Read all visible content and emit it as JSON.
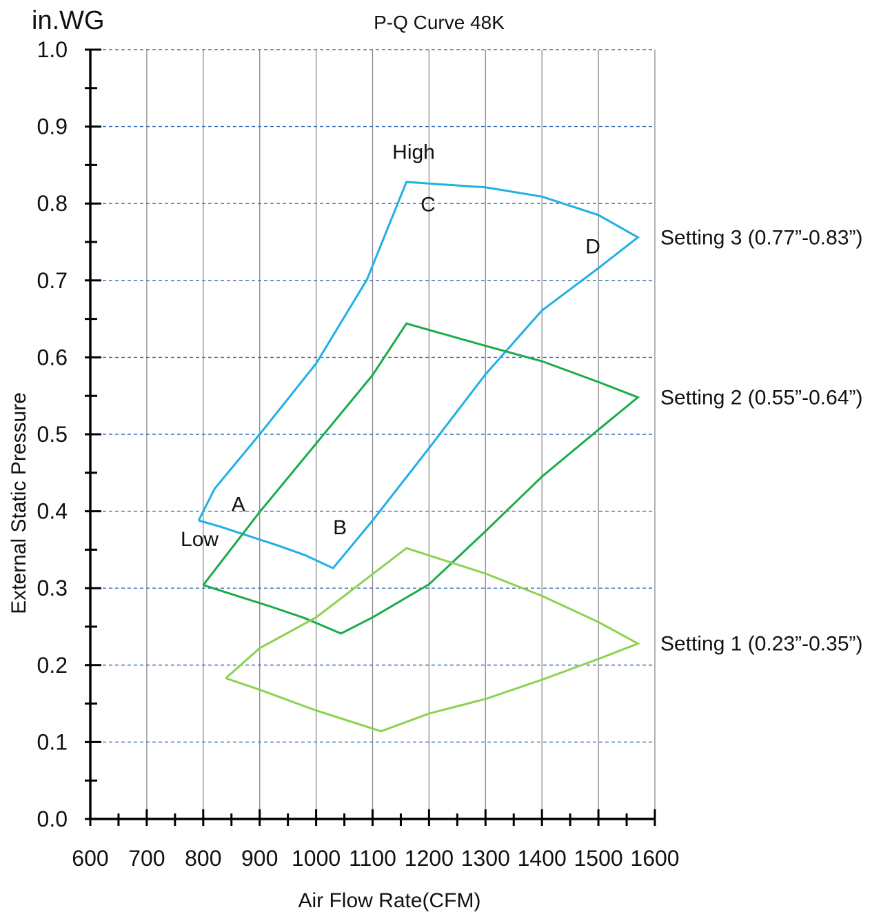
{
  "chart_data": {
    "type": "line",
    "title": "P-Q Curve 48K",
    "unit_label": "in.WG",
    "xlabel": "Air Flow Rate(CFM)",
    "ylabel": "External Static Pressure",
    "xlim": [
      600,
      1600
    ],
    "ylim": [
      0.0,
      1.0
    ],
    "x_ticks": [
      600,
      700,
      800,
      900,
      1000,
      1100,
      1200,
      1300,
      1400,
      1500,
      1600
    ],
    "y_ticks": [
      0.0,
      0.1,
      0.2,
      0.3,
      0.4,
      0.5,
      0.6,
      0.7,
      0.8,
      0.9,
      1.0
    ],
    "x_tick_labels": [
      "600",
      "700",
      "800",
      "900",
      "1000",
      "1100",
      "1200",
      "1300",
      "1400",
      "1500",
      "1600"
    ],
    "y_tick_labels": [
      "0.0",
      "0.1",
      "0.2",
      "0.3",
      "0.4",
      "0.5",
      "0.6",
      "0.7",
      "0.8",
      "0.9",
      "1.0"
    ],
    "grid": {
      "vertical": true,
      "horizontal": true,
      "horizontal_style": "dashed"
    },
    "series": [
      {
        "name": "Setting 3 (0.77”-0.83”)",
        "color": "#1eb0e6",
        "points": [
          [
            792,
            0.388
          ],
          [
            830,
            0.38
          ],
          [
            880,
            0.368
          ],
          [
            930,
            0.356
          ],
          [
            980,
            0.343
          ],
          [
            1030,
            0.326
          ],
          [
            1100,
            0.388
          ],
          [
            1200,
            0.482
          ],
          [
            1300,
            0.578
          ],
          [
            1400,
            0.661
          ],
          [
            1500,
            0.716
          ],
          [
            1570,
            0.756
          ],
          [
            1500,
            0.785
          ],
          [
            1400,
            0.809
          ],
          [
            1300,
            0.821
          ],
          [
            1160,
            0.828
          ],
          [
            1090,
            0.701
          ],
          [
            1000,
            0.592
          ],
          [
            900,
            0.5
          ],
          [
            820,
            0.429
          ],
          [
            792,
            0.388
          ]
        ]
      },
      {
        "name": "Setting 2 (0.55”-0.64”)",
        "color": "#1aab4b",
        "points": [
          [
            800,
            0.304
          ],
          [
            860,
            0.29
          ],
          [
            920,
            0.276
          ],
          [
            980,
            0.261
          ],
          [
            1044,
            0.241
          ],
          [
            1100,
            0.262
          ],
          [
            1200,
            0.305
          ],
          [
            1300,
            0.374
          ],
          [
            1400,
            0.445
          ],
          [
            1500,
            0.506
          ],
          [
            1570,
            0.548
          ],
          [
            1500,
            0.568
          ],
          [
            1400,
            0.595
          ],
          [
            1300,
            0.615
          ],
          [
            1160,
            0.644
          ],
          [
            1100,
            0.577
          ],
          [
            1000,
            0.488
          ],
          [
            900,
            0.399
          ],
          [
            800,
            0.304
          ]
        ]
      },
      {
        "name": "Setting 1 (0.23”-0.35”)",
        "color": "#8cd150",
        "points": [
          [
            840,
            0.183
          ],
          [
            900,
            0.168
          ],
          [
            1000,
            0.141
          ],
          [
            1115,
            0.114
          ],
          [
            1200,
            0.137
          ],
          [
            1300,
            0.156
          ],
          [
            1400,
            0.181
          ],
          [
            1500,
            0.208
          ],
          [
            1570,
            0.228
          ],
          [
            1500,
            0.256
          ],
          [
            1400,
            0.29
          ],
          [
            1300,
            0.319
          ],
          [
            1160,
            0.352
          ],
          [
            1000,
            0.262
          ],
          [
            900,
            0.222
          ],
          [
            840,
            0.183
          ]
        ]
      }
    ],
    "annotations": [
      {
        "text": "High",
        "x": 1135,
        "y": 0.858
      },
      {
        "text": "C",
        "x": 1185,
        "y": 0.79
      },
      {
        "text": "D",
        "x": 1477,
        "y": 0.735
      },
      {
        "text": "A",
        "x": 850,
        "y": 0.4
      },
      {
        "text": "Low",
        "x": 760,
        "y": 0.355
      },
      {
        "text": "B",
        "x": 1030,
        "y": 0.37
      }
    ],
    "series_labels": [
      {
        "text": "Setting 3 (0.77”-0.83”)",
        "y": 0.756
      },
      {
        "text": "Setting 2 (0.55”-0.64”)",
        "y": 0.548
      },
      {
        "text": "Setting 1 (0.23”-0.35”)",
        "y": 0.228
      }
    ]
  }
}
